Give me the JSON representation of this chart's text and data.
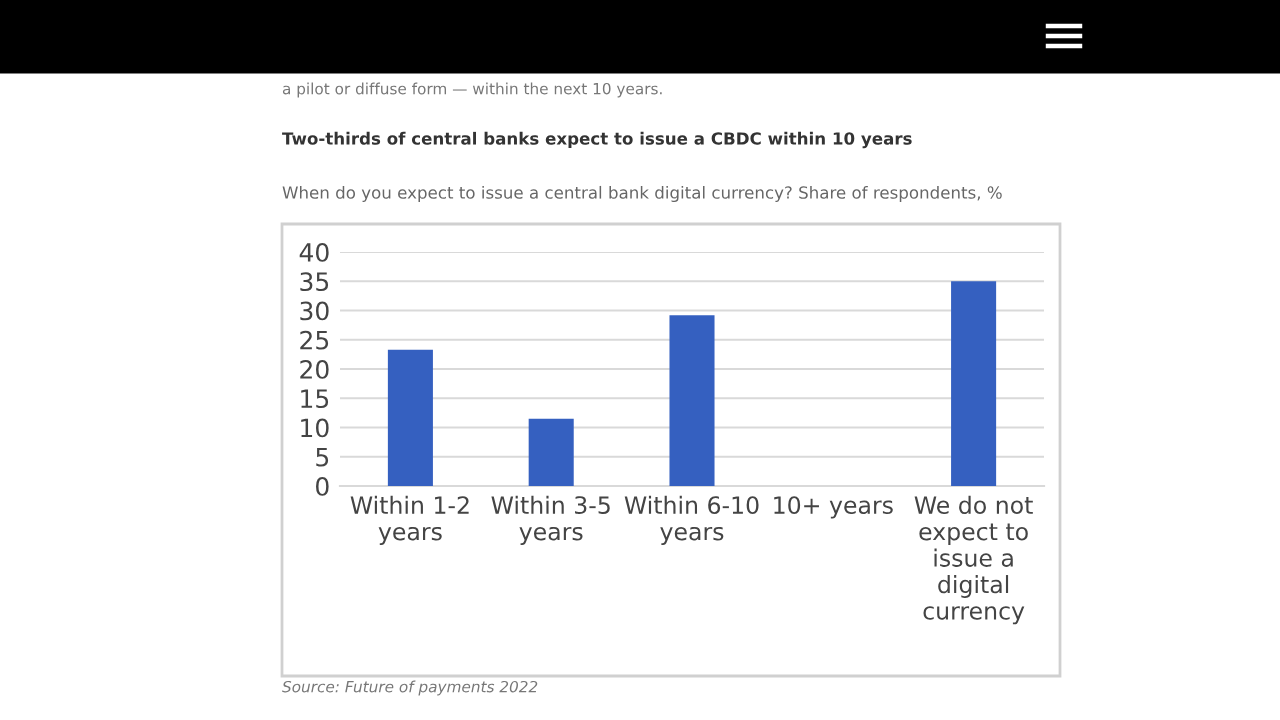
{
  "chart_data": {
    "type": "bar",
    "title": "Two-thirds of central banks expect to issue a CBDC within 10 years",
    "subtitle": "When do you expect to issue a central bank digital currency? Share of respondents, %",
    "categories": [
      "Within 1-2\nyears",
      "Within 3-5\nyears",
      "Within 6-10\nyears",
      "10+ years",
      "We do not\nexpect to\nissue a\ndigital\ncurrency"
    ],
    "values": [
      23.3,
      11.5,
      29.2,
      0,
      35.0
    ],
    "color": "#3560c0",
    "ylim": [
      0,
      40
    ],
    "yticks": [
      0,
      5,
      10,
      15,
      20,
      25,
      30,
      35,
      40
    ],
    "grid": "y",
    "annotations": [
      "a pilot or diffuse form — within the next 10 years.",
      "Source: Future of payments 2022"
    ]
  }
}
